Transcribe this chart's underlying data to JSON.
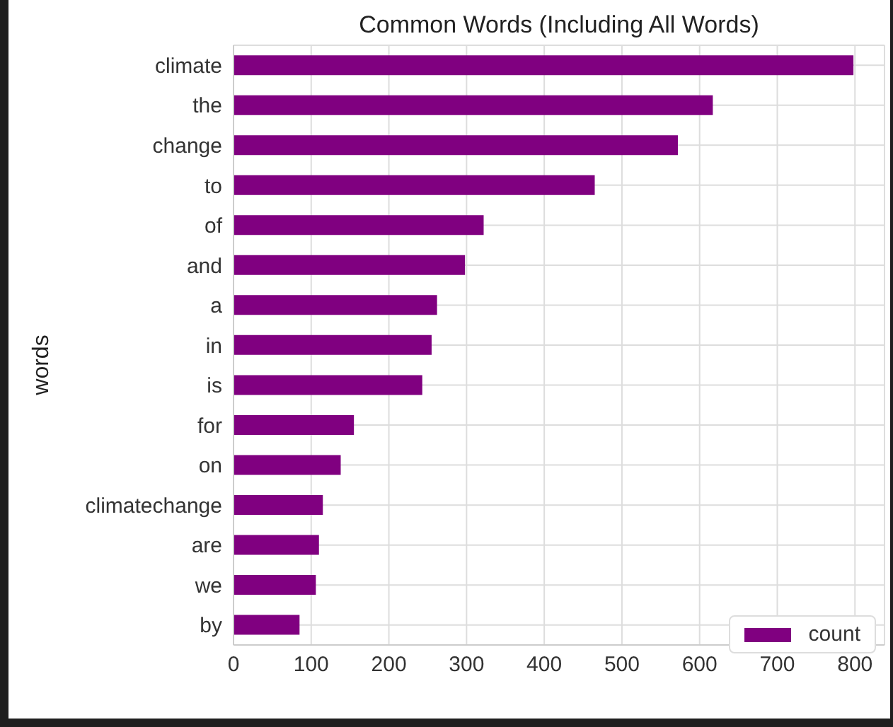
{
  "chart_data": {
    "type": "bar",
    "orientation": "horizontal",
    "title": "Common Words (Including All Words)",
    "ylabel": "words",
    "categories": [
      "climate",
      "the",
      "change",
      "to",
      "of",
      "and",
      "a",
      "in",
      "is",
      "for",
      "on",
      "climatechange",
      "are",
      "we",
      "by"
    ],
    "series": [
      {
        "name": "count",
        "color": "#800080",
        "values": [
          798,
          617,
          572,
          465,
          322,
          298,
          262,
          255,
          243,
          155,
          138,
          115,
          110,
          106,
          85
        ]
      }
    ],
    "xlim": [
      0,
      838
    ],
    "xticks": [
      0,
      100,
      200,
      300,
      400,
      500,
      600,
      700,
      800
    ],
    "grid": true,
    "legend": "bottom right"
  }
}
